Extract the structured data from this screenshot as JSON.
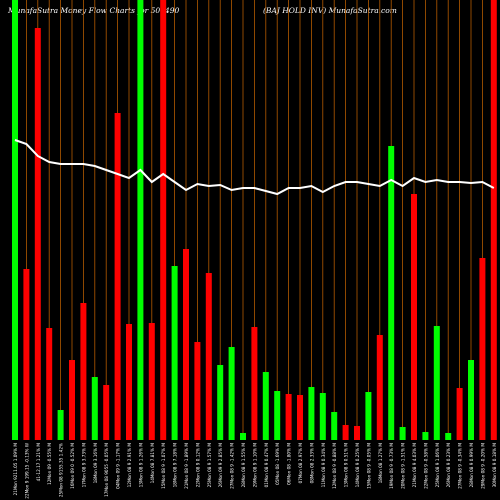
{
  "header": {
    "title_left": "MunafaSutra  Money Flow  Charts for 500490",
    "title_right": "(BAJ HOLD INV) MunafaSutra.com"
  },
  "colors": {
    "background": "#000000",
    "up": "#00ff00",
    "down": "#ff0000",
    "grid": "#b35a00",
    "line": "#ffffff",
    "label": "#ffffff"
  },
  "chart_data": {
    "type": "bar",
    "title": "MunafaSutra  Money Flow  Charts for 500490",
    "subtitle": "(BAJ HOLD INV) MunafaSutra.com",
    "grid": true,
    "ylim": [
      0,
      440
    ],
    "line_ylim": [
      0,
      440
    ],
    "categories": [
      "21Mon 9211.05 1.09% M",
      "22Mon 9 199.15 -0.13% W",
      "41-12.17 1.21% M",
      "12Mon 09 -0.55% M",
      "25Mon 08 9155.35 1.42%",
      "16Mon 09 0 -0.52% M",
      "17Mon 08 9 3.73% M",
      "18Mon 09 3.16% M",
      "17Mon 08 9055 -0.05% M",
      "04Mon 09 9 -1.17% M",
      "12Mon 08 9 2.91% M",
      "13Mon 08 9 1.26% M",
      "14Mon 08 7.81% M",
      "15Mon 08 9 -1.07% M",
      "18Mon 08 9 7.18% M",
      "21Mon 08 9 -1.89% M",
      "22Mon 08 9 0.12% M",
      "25Mon 08 9 1.57% M",
      "26Mon 09 9 2.85% M",
      "27Mon 08 9 -1.42% M",
      "28Mon 08 9 1.55% M",
      "29Mon 08 9 1.10% M",
      "01Mon 08 9 0.47% M",
      "05Mon 08 -1.69% M",
      "06Mon 08 -1.80% M",
      "07Mon 08 2.97% M",
      "08Mon 08 2.33% M",
      "11Mon 08 9 0.34% M",
      "12Mon 08 9 -0.88% M",
      "13Mon 08 9 0.51% M",
      "14Mon 08 9 0.25% M",
      "15Mon 08 9 -0.05% M",
      "18Mon 08 1.27% M",
      "19Mon 08 9 -0.73% M",
      "20Mon 08 9 -1.51% M",
      "21Mon 08 9 4.03% M",
      "22Mon 08 9 -0.58% M",
      "25Mon 08 9 1.06% M",
      "26Mon 08 9 0.23% M",
      "27Mon 08 9 -0.34% M",
      "28Mon 08 9 0.99% M",
      "29Mon 08 9 -0.20% M",
      "30Mon 08 9 0.18% M"
    ],
    "values": [
      440,
      171,
      412,
      112,
      30,
      80,
      137,
      63,
      55,
      327,
      116,
      440,
      117,
      440,
      174,
      191,
      98,
      167,
      75,
      93,
      7,
      113,
      68,
      49,
      46,
      45,
      53,
      47,
      28,
      15,
      14,
      48,
      105,
      294,
      13,
      246,
      8,
      114,
      7,
      52,
      80,
      182,
      440
    ],
    "directions": [
      "up",
      "down",
      "down",
      "down",
      "up",
      "down",
      "down",
      "up",
      "down",
      "down",
      "down",
      "up",
      "down",
      "down",
      "up",
      "down",
      "down",
      "down",
      "up",
      "up",
      "up",
      "down",
      "up",
      "up",
      "down",
      "down",
      "up",
      "up",
      "up",
      "down",
      "down",
      "up",
      "down",
      "up",
      "up",
      "down",
      "up",
      "up",
      "up",
      "down",
      "up",
      "down",
      "down"
    ],
    "line_values": [
      300,
      296,
      284,
      278,
      276,
      276,
      276,
      274,
      270,
      266,
      262,
      270,
      258,
      266,
      258,
      250,
      256,
      254,
      255,
      250,
      252,
      252,
      249,
      246,
      252,
      252,
      254,
      248,
      254,
      258,
      258,
      256,
      254,
      260,
      254,
      262,
      258,
      260,
      258,
      258,
      257,
      258,
      252
    ]
  }
}
